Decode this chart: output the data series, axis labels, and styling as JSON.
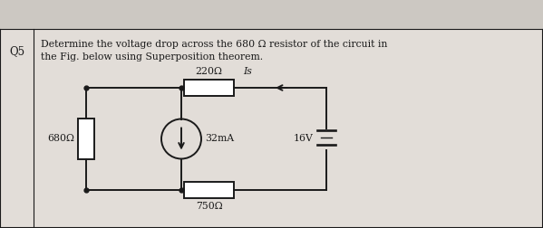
{
  "bg_color": "#ccc8c2",
  "panel_bg": "#e2ddd8",
  "line_color": "#1a1a1a",
  "text_color": "#1a1a1a",
  "q_label": "Q5",
  "title_line1": "Determine the voltage drop across the 680 Ω resistor of the circuit in",
  "title_line2": "the Fig. below using Superposition theorem.",
  "r1_label": "680Ω",
  "r2_label": "220Ω",
  "r3_label": "750Ω",
  "cs_label": "32mA",
  "vs_label": "16V",
  "current_label": "Is",
  "lw": 1.4,
  "font_size": 8.5,
  "small_font": 7.8,
  "figw": 5.99,
  "figh": 2.52,
  "dpi": 100
}
